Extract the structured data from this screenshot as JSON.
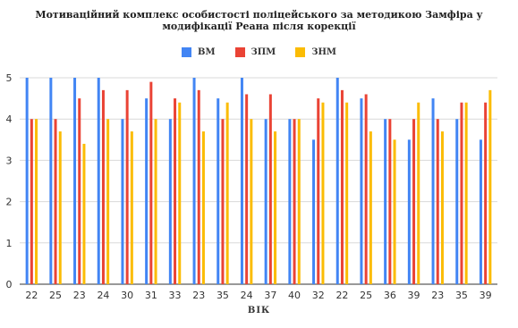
{
  "chart_data": {
    "type": "bar",
    "title": "Мотиваційний комплекс особистості поліцейського за методикою Замфіра у модифікації Реана після корекції",
    "title_lines": [
      "Мотиваційний комплекс особистості поліцейського за методикою Замфіра у",
      "модифікації Реана після корекції"
    ],
    "xlabel": "ВІК",
    "ylabel": "",
    "ylim": [
      0,
      5
    ],
    "yticks": [
      0,
      1,
      2,
      3,
      4,
      5
    ],
    "grid": true,
    "legend_position": "top",
    "categories": [
      "22",
      "25",
      "23",
      "24",
      "30",
      "31",
      "33",
      "23",
      "35",
      "24",
      "37",
      "40",
      "32",
      "22",
      "25",
      "36",
      "39",
      "23",
      "35",
      "39"
    ],
    "series": [
      {
        "name": "ВМ",
        "color": "#4285f4",
        "values": [
          5,
          5,
          5,
          5,
          4,
          4.5,
          4,
          5,
          4.5,
          5,
          4,
          4,
          3.5,
          5,
          4.5,
          4,
          3.5,
          4.5,
          4,
          3.5
        ]
      },
      {
        "name": "ЗПМ",
        "color": "#ea4335",
        "values": [
          4,
          4,
          4.5,
          4.7,
          4.7,
          4.9,
          4.5,
          4.7,
          4,
          4.6,
          4.6,
          4,
          4.5,
          4.7,
          4.6,
          4,
          4,
          4,
          4.4,
          4.4
        ]
      },
      {
        "name": "ЗНМ",
        "color": "#fbbc04",
        "values": [
          4,
          3.7,
          3.4,
          4,
          3.7,
          4,
          4.4,
          3.7,
          4.4,
          4,
          3.7,
          4,
          4.4,
          4.4,
          3.7,
          3.5,
          4.4,
          3.7,
          4.4,
          4.7
        ]
      }
    ]
  }
}
